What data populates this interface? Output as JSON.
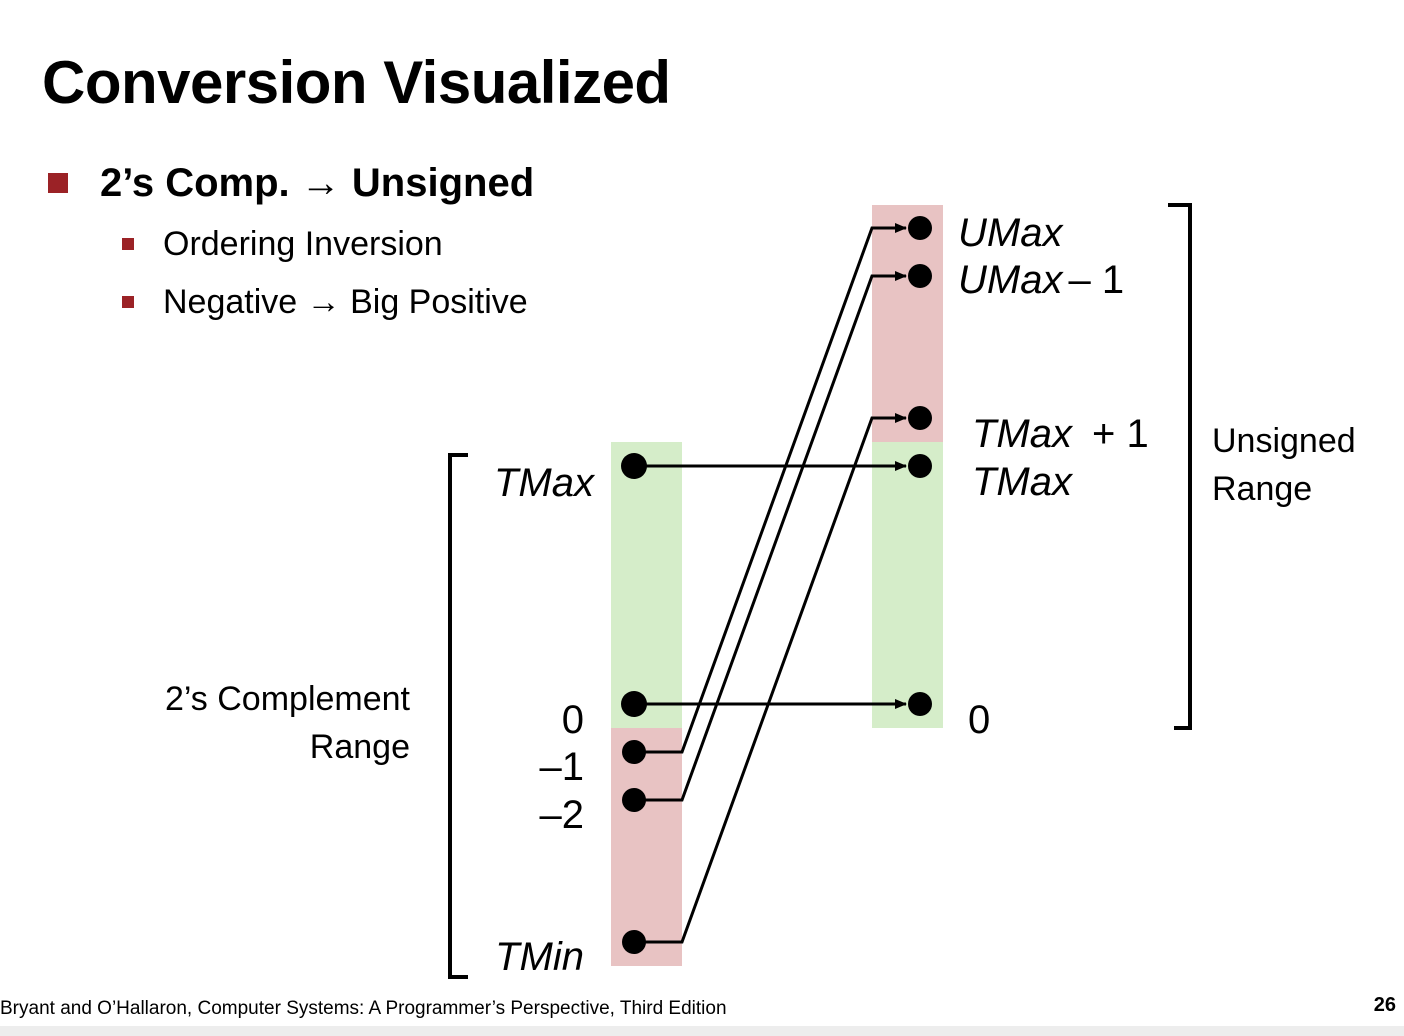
{
  "slide": {
    "title": "Conversion Visualized",
    "bullet_main": "2’s Comp. → Unsigned",
    "bullet_sub_1": "Ordering Inversion",
    "bullet_sub_2": "Negative → Big Positive",
    "footer": "Bryant and O’Hallaron, Computer Systems: A Programmer’s Perspective, Third Edition",
    "page_number": "26"
  },
  "diagram": {
    "left_axis": {
      "labels": [
        "TMax",
        "0",
        "–1",
        "–2",
        "TMin"
      ],
      "range_label_line_1": "2’s Complement",
      "range_label_line_2": "Range"
    },
    "right_axis": {
      "labels": {
        "umax": "UMax",
        "umax_minus_1_main": "UMax",
        "umax_minus_1_suffix": "– 1",
        "tmax_plus_1_main": "TMax",
        "tmax_plus_1_suffix": "+ 1",
        "tmax": "TMax",
        "zero": "0"
      },
      "range_label_line_1": "Unsigned",
      "range_label_line_2": "Range"
    },
    "mappings": [
      {
        "from": "TMax",
        "to": "TMax"
      },
      {
        "from": "0",
        "to": "0"
      },
      {
        "from": "–1",
        "to": "UMax"
      },
      {
        "from": "–2",
        "to": "UMax – 1"
      },
      {
        "from": "TMin",
        "to": "TMax + 1"
      }
    ],
    "colors": {
      "nonnegative_band": "#d5edc9",
      "negative_band": "#e8c3c3",
      "bullet": "#9b2226"
    }
  }
}
